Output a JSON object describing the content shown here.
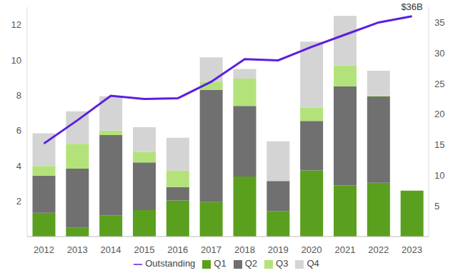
{
  "chart_data": {
    "type": "bar",
    "stacked": true,
    "grid": false,
    "legend": "bottom",
    "categories": [
      "2012",
      "2013",
      "2014",
      "2015",
      "2016",
      "2017",
      "2018",
      "2019",
      "2020",
      "2021",
      "2022",
      "2023"
    ],
    "series": [
      {
        "name": "Q1",
        "color": "#5aa01e",
        "values": [
          1.35,
          0.5,
          1.2,
          1.5,
          2.05,
          1.95,
          3.4,
          1.45,
          3.75,
          2.9,
          3.05,
          2.6
        ]
      },
      {
        "name": "Q2",
        "color": "#707070",
        "values": [
          2.1,
          3.35,
          4.55,
          2.7,
          0.75,
          6.35,
          4.0,
          1.7,
          2.8,
          5.6,
          4.9,
          null
        ]
      },
      {
        "name": "Q3",
        "color": "#b4e27a",
        "values": [
          0.55,
          1.4,
          0.25,
          0.6,
          0.95,
          0.45,
          1.55,
          0,
          0.75,
          1.2,
          0.05,
          null
        ]
      },
      {
        "name": "Q4",
        "color": "#d4d4d4",
        "values": [
          1.85,
          1.85,
          1.95,
          1.4,
          1.85,
          1.4,
          0.55,
          2.25,
          3.75,
          2.8,
          1.4,
          null
        ]
      },
      {
        "name": "Outstanding",
        "type": "line",
        "axis": "y2",
        "color": "#5b1fe0",
        "values": [
          15.2,
          19.0,
          23.0,
          22.5,
          22.6,
          25.3,
          29.0,
          28.8,
          31.0,
          33.0,
          35.0,
          36.0
        ]
      }
    ],
    "ylim": [
      0,
      13
    ],
    "yticks": [
      2,
      4,
      6,
      8,
      10,
      12
    ],
    "y2lim": [
      0,
      37.5
    ],
    "y2ticks": [
      5,
      10,
      15,
      20,
      25,
      30,
      35
    ],
    "annotations": [
      "$36B"
    ]
  }
}
